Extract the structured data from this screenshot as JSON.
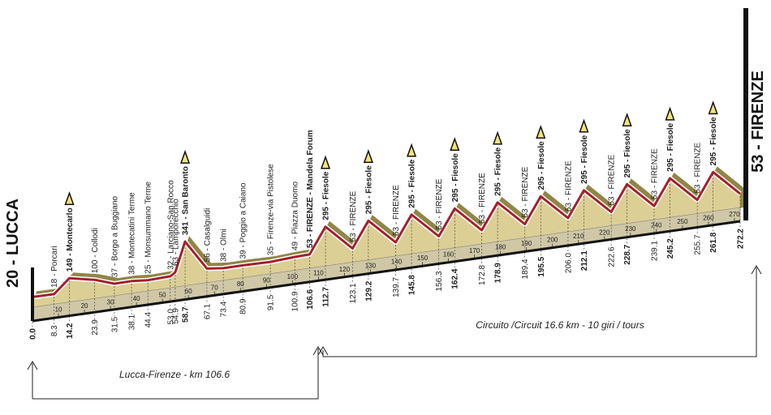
{
  "chart_data": {
    "type": "profile",
    "x": [
      0,
      8.3,
      14.2,
      23.9,
      31.5,
      38.1,
      44.4,
      53.0,
      54.9,
      58.7,
      67.1,
      73.4,
      80.9,
      91.5,
      100.9,
      106.6,
      112.7,
      123.1,
      129.2,
      139.7,
      145.8,
      156.3,
      162.4,
      172.8,
      178.9,
      189.4,
      195.5,
      206.0,
      212.1,
      222.6,
      228.7,
      239.1,
      245.2,
      255.7,
      261.8,
      272.2
    ],
    "x_labels": [
      "0.0",
      "8.3",
      "14.2",
      "23.9",
      "31.5",
      "38.1",
      "44.4",
      "53.0",
      "54.9",
      "58.7",
      "67.1",
      "73.4",
      "80.9",
      "91.5",
      "100.9",
      "106.6",
      "112.7",
      "123.1",
      "129.2",
      "139.7",
      "145.8",
      "156.3",
      "162.4",
      "172.8",
      "178.9",
      "189.4",
      "195.5",
      "206.0",
      "212.1",
      "222.6",
      "228.7",
      "239.1",
      "245.2",
      "255.7",
      "261.8",
      "272.2"
    ],
    "values": [
      20,
      18,
      149,
      100,
      37,
      38,
      25,
      32,
      63,
      341,
      56,
      38,
      39,
      35,
      49,
      53,
      295,
      53,
      295,
      53,
      295,
      53,
      295,
      53,
      295,
      53,
      295,
      53,
      295,
      53,
      295,
      53,
      295,
      53,
      295,
      53
    ],
    "value_labels": [
      "20 - LUCCA",
      "18 - Porcari",
      "149 - Montecarlo",
      "100 - Collodi",
      "37 - Borgo a Buggiano",
      "38 - Montecatini Terme",
      "25 - Monsummano Terme",
      "32 - Larciano-San Rocco",
      "63 - Lamporecchio",
      "341 - San Baronto",
      "56 - Casalguidi",
      "38 - Olmi",
      "39 - Poggio a Caiano",
      "35 - Firenze-via Pistolese",
      "49 - Piazza Duomo",
      "53 - FIRENZE - Mandela Forum",
      "295 - Fiesole",
      "53 - FIRENZE",
      "295 - Fiesole",
      "53 - FIRENZE",
      "295 - Fiesole",
      "53 - FIRENZE",
      "295 - Fiesole",
      "53 - FIRENZE",
      "295 - Fiesole",
      "53 - FIRENZE",
      "295 - Fiesole",
      "53 - FIRENZE",
      "295 - Fiesole",
      "53 - FIRENZE",
      "295 - Fiesole",
      "53 - FIRENZE",
      "295 - Fiesole",
      "53 - FIRENZE",
      "295 - Fiesole",
      "53 - FIRENZE"
    ],
    "bold": [
      true,
      false,
      true,
      false,
      false,
      false,
      false,
      false,
      false,
      true,
      false,
      false,
      false,
      false,
      false,
      true,
      true,
      false,
      true,
      false,
      true,
      false,
      true,
      false,
      true,
      false,
      true,
      false,
      true,
      false,
      true,
      false,
      true,
      false,
      true,
      true
    ],
    "gpm": [
      false,
      false,
      true,
      false,
      false,
      false,
      false,
      false,
      false,
      true,
      false,
      false,
      false,
      false,
      false,
      false,
      true,
      false,
      true,
      false,
      true,
      false,
      true,
      false,
      true,
      false,
      true,
      false,
      true,
      false,
      true,
      false,
      true,
      false,
      true,
      false
    ],
    "xlim": [
      0,
      272.2
    ],
    "xticks": [
      10,
      20,
      30,
      40,
      50,
      60,
      70,
      80,
      90,
      100,
      110,
      120,
      130,
      140,
      150,
      160,
      170,
      180,
      190,
      200,
      210,
      220,
      230,
      240,
      250,
      260,
      270
    ],
    "profile_color": "#a3212b",
    "terrain_color": "#dccf95",
    "segments": [
      "Lucca-Firenze - km 106.6",
      "Circuito /Circuit 16.6 km - 10 giri / tours"
    ]
  }
}
